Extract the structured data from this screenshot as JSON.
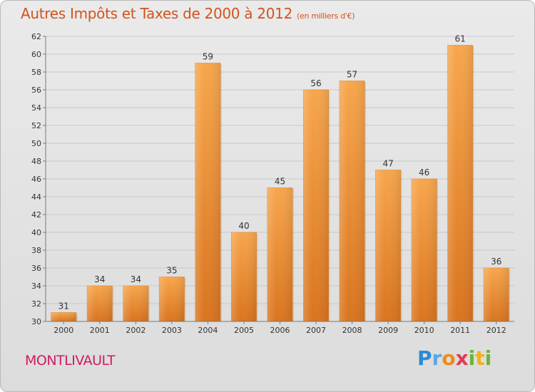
{
  "title": "Autres Impôts et Taxes de 2000 à 2012",
  "title_unit": "(en milliers d'€)",
  "place_name": "MONTLIVAULT",
  "logo": {
    "letters": [
      "P",
      "r",
      "o",
      "x",
      "i",
      "t",
      "i"
    ],
    "text": "Proxiti"
  },
  "colors": {
    "bar": "#f39c3f",
    "bar_dark": "#d86f1c",
    "title": "#d2531d",
    "place": "#d01b62"
  },
  "chart_data": {
    "type": "bar",
    "title": "Autres Impôts et Taxes de 2000 à 2012",
    "xlabel": "",
    "ylabel": "",
    "categories": [
      "2000",
      "2001",
      "2002",
      "2003",
      "2004",
      "2005",
      "2006",
      "2007",
      "2008",
      "2009",
      "2010",
      "2011",
      "2012"
    ],
    "values": [
      31,
      34,
      34,
      35,
      59,
      40,
      45,
      56,
      57,
      47,
      46,
      61,
      36
    ],
    "ylim": [
      30,
      62
    ],
    "yticks": [
      30,
      32,
      34,
      36,
      38,
      40,
      42,
      44,
      46,
      48,
      50,
      52,
      54,
      56,
      58,
      60,
      62
    ],
    "grid": true,
    "legend": "none"
  }
}
